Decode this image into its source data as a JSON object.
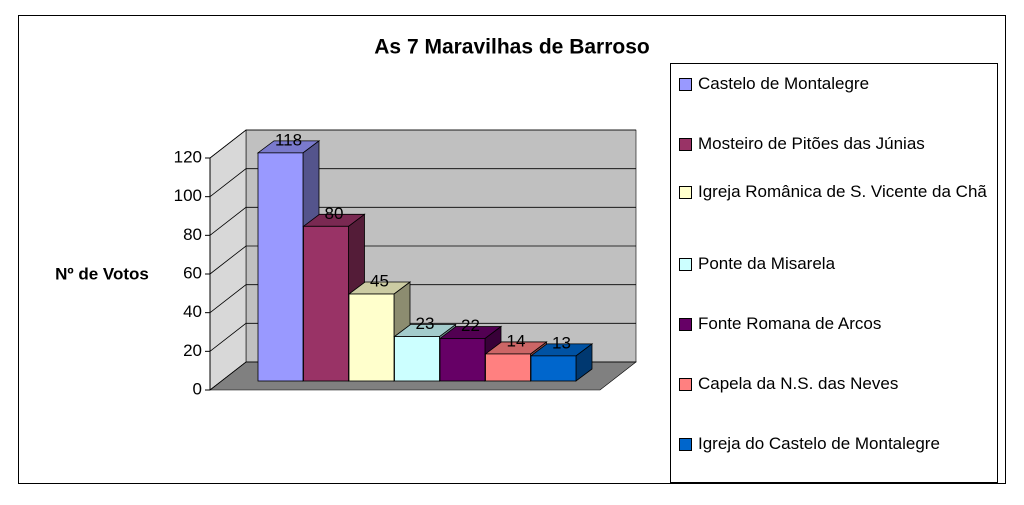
{
  "chart_data": {
    "type": "bar3d",
    "title": "As 7 Maravilhas de Barroso",
    "y_label": "Nº de Votos",
    "categories": [
      null
    ],
    "series": [
      {
        "name": "Castelo de Montalegre",
        "color": "#9999ff",
        "values": [
          118
        ]
      },
      {
        "name": "Mosteiro de Pitões das Júnias",
        "color": "#993366",
        "values": [
          80
        ]
      },
      {
        "name": "Igreja Românica de S. Vicente da Chã",
        "color": "#ffffcc",
        "values": [
          45
        ]
      },
      {
        "name": "Ponte da Misarela",
        "color": "#ccffff",
        "values": [
          23
        ]
      },
      {
        "name": "Fonte Romana de Arcos",
        "color": "#660066",
        "values": [
          22
        ]
      },
      {
        "name": "Capela da N.S. das Neves",
        "color": "#ff8080",
        "values": [
          14
        ]
      },
      {
        "name": "Igreja do Castelo de Montalegre",
        "color": "#0066cc",
        "values": [
          13
        ]
      }
    ],
    "ylim": [
      0,
      120
    ],
    "yticks": [
      0,
      20,
      40,
      60,
      80,
      100,
      120
    ],
    "grid": true,
    "legend": "right"
  }
}
